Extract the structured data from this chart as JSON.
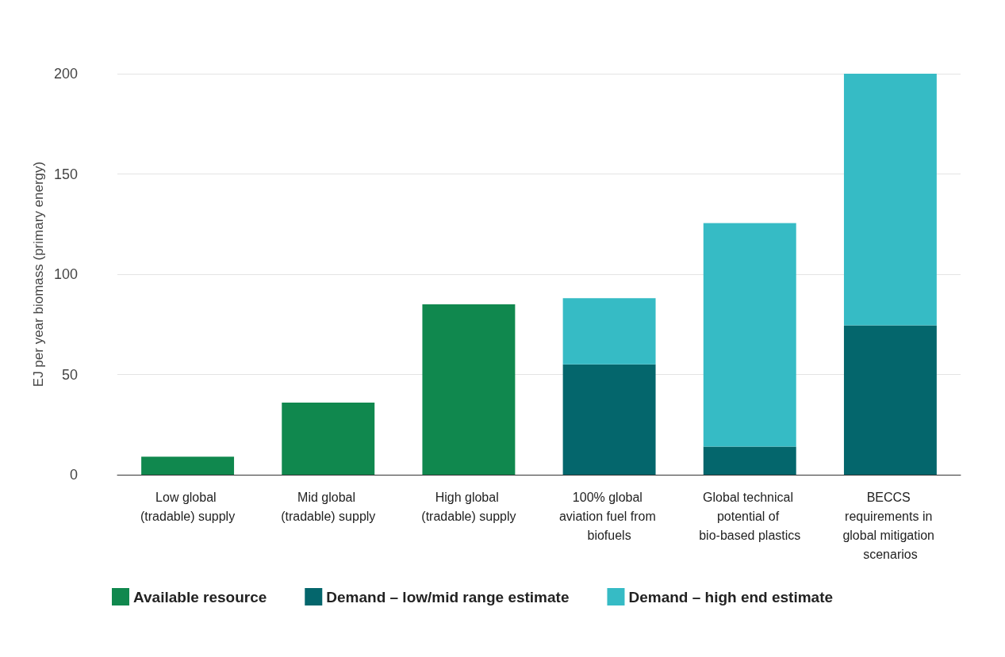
{
  "chart_data": {
    "type": "bar",
    "stacked": true,
    "ylabel": "EJ per year biomass (primary energy)",
    "categories": [
      "Low global (tradable) supply",
      "Mid global (tradable) supply",
      "High global (tradable) supply",
      "100% global aviation fuel from biofuels",
      "Global technical potential of bio-based plastics",
      "BECCS requirements in global mitigation scenarios"
    ],
    "series": [
      {
        "name": "Available resource",
        "color": "#10884e",
        "values": [
          9,
          36,
          85,
          null,
          null,
          null
        ]
      },
      {
        "name": "Demand – low/mid range estimate",
        "color": "#04666c",
        "values": [
          null,
          null,
          null,
          55,
          14,
          74.5
        ]
      },
      {
        "name": "Demand – high end estimate",
        "color": "#36bbc5",
        "values": [
          null,
          null,
          null,
          33,
          111.5,
          125.5
        ]
      }
    ],
    "ylim": [
      0,
      200
    ],
    "yticks": [
      0,
      50,
      100,
      150,
      200
    ],
    "grid": "y",
    "legend": "bottom left"
  }
}
